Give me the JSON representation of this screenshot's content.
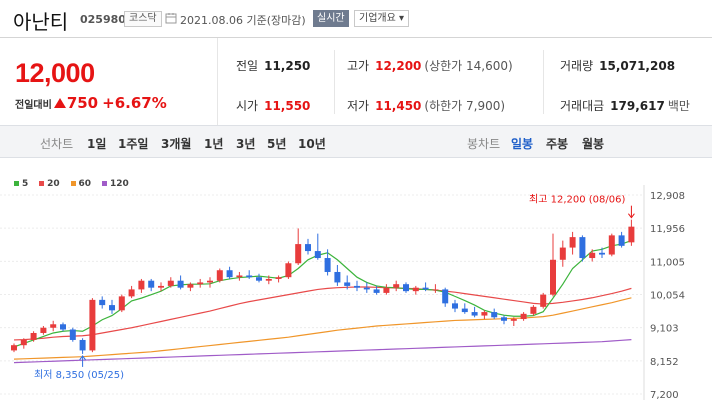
{
  "header": {
    "stock_name": "아난티",
    "stock_code": "025980",
    "market": "코스닥",
    "date_text": "2021.08.06 기준(장마감)",
    "realtime_label": "실시간",
    "overview_label": "기업개요 ▾"
  },
  "price": {
    "current": "12,000",
    "diff_label": "전일대비",
    "diff_value": "750",
    "diff_rate": "+6.67%"
  },
  "stats": {
    "prev_close": {
      "label": "전일",
      "value": "11,250"
    },
    "open": {
      "label": "시가",
      "value": "11,550"
    },
    "high": {
      "label": "고가",
      "value": "12,200",
      "note": "(상한가 14,600)"
    },
    "low": {
      "label": "저가",
      "value": "11,450",
      "note": "(하한가 7,900)"
    },
    "volume": {
      "label": "거래량",
      "value": "15,071,208"
    },
    "turnover": {
      "label": "거래대금",
      "value": "179,617",
      "unit": "백만"
    }
  },
  "periods": {
    "line_label": "선차트",
    "line_options": [
      "1일",
      "1주일",
      "3개월",
      "1년",
      "3년",
      "5년",
      "10년"
    ],
    "candle_label": "봉차트",
    "candle_options": [
      "일봉",
      "주봉",
      "월봉"
    ],
    "selected": "일봉"
  },
  "colors": {
    "up": "#e83c3c",
    "down": "#2f6fe0",
    "ma5": "#3cb43c",
    "ma20": "#e84a4a",
    "ma60": "#f0962a",
    "ma120": "#a05cc8",
    "accent": "#e61414"
  },
  "chart_data": {
    "type": "candlestick",
    "legend": [
      "5",
      "20",
      "60",
      "120"
    ],
    "y_ticks": [
      "12,908",
      "11,956",
      "11,005",
      "10,054",
      "9,103",
      "8,152",
      "7,200"
    ],
    "ylim": [
      7200,
      12908
    ],
    "annotations": {
      "high": "최고 12,200 (08/06)",
      "low": "최저 8,350 (05/25)"
    },
    "candles": [
      [
        8450,
        8650,
        8400,
        8600
      ],
      [
        8600,
        8800,
        8500,
        8750
      ],
      [
        8750,
        9000,
        8700,
        8950
      ],
      [
        8950,
        9150,
        8900,
        9100
      ],
      [
        9100,
        9300,
        9000,
        9200
      ],
      [
        9200,
        9250,
        9000,
        9050
      ],
      [
        9050,
        9100,
        8700,
        8750
      ],
      [
        8750,
        8800,
        8350,
        8450
      ],
      [
        8450,
        9950,
        8400,
        9900
      ],
      [
        9900,
        10000,
        9650,
        9750
      ],
      [
        9750,
        9900,
        9500,
        9600
      ],
      [
        9600,
        10050,
        9550,
        10000
      ],
      [
        10000,
        10300,
        9950,
        10200
      ],
      [
        10200,
        10500,
        10100,
        10450
      ],
      [
        10450,
        10500,
        10150,
        10250
      ],
      [
        10250,
        10400,
        10150,
        10300
      ],
      [
        10300,
        10550,
        10250,
        10450
      ],
      [
        10450,
        10600,
        10200,
        10250
      ],
      [
        10250,
        10400,
        10150,
        10350
      ],
      [
        10350,
        10500,
        10250,
        10400
      ],
      [
        10400,
        10550,
        10250,
        10450
      ],
      [
        10450,
        10800,
        10400,
        10750
      ],
      [
        10750,
        10850,
        10500,
        10550
      ],
      [
        10550,
        10700,
        10450,
        10600
      ],
      [
        10600,
        10750,
        10500,
        10550
      ],
      [
        10550,
        10650,
        10400,
        10450
      ],
      [
        10450,
        10600,
        10350,
        10500
      ],
      [
        10500,
        10600,
        10400,
        10550
      ],
      [
        10550,
        11000,
        10500,
        10950
      ],
      [
        10950,
        11950,
        10900,
        11500
      ],
      [
        11500,
        11650,
        11200,
        11300
      ],
      [
        11300,
        11800,
        11050,
        11100
      ],
      [
        11100,
        11350,
        10600,
        10700
      ],
      [
        10700,
        10900,
        10300,
        10400
      ],
      [
        10400,
        10600,
        10200,
        10300
      ],
      [
        10300,
        10450,
        10150,
        10250
      ],
      [
        10250,
        10400,
        10100,
        10200
      ],
      [
        10200,
        10300,
        10050,
        10100
      ],
      [
        10100,
        10350,
        10050,
        10250
      ],
      [
        10250,
        10450,
        10150,
        10350
      ],
      [
        10350,
        10400,
        10100,
        10150
      ],
      [
        10150,
        10300,
        10050,
        10250
      ],
      [
        10250,
        10400,
        10150,
        10200
      ],
      [
        10200,
        10350,
        10100,
        10200
      ],
      [
        10200,
        10250,
        9700,
        9800
      ],
      [
        9800,
        9900,
        9550,
        9650
      ],
      [
        9650,
        9800,
        9500,
        9550
      ],
      [
        9550,
        9700,
        9400,
        9450
      ],
      [
        9450,
        9600,
        9350,
        9550
      ],
      [
        9550,
        9650,
        9350,
        9400
      ],
      [
        9400,
        9450,
        9200,
        9300
      ],
      [
        9300,
        9400,
        9150,
        9350
      ],
      [
        9350,
        9550,
        9300,
        9500
      ],
      [
        9500,
        9750,
        9450,
        9700
      ],
      [
        9700,
        10100,
        9650,
        10050
      ],
      [
        10050,
        11800,
        10000,
        11050
      ],
      [
        11050,
        11600,
        10850,
        11400
      ],
      [
        11400,
        11850,
        11200,
        11700
      ],
      [
        11700,
        11750,
        11000,
        11100
      ],
      [
        11100,
        11350,
        11000,
        11250
      ],
      [
        11250,
        11400,
        11100,
        11200
      ],
      [
        11200,
        11800,
        11150,
        11750
      ],
      [
        11750,
        11850,
        11400,
        11450
      ],
      [
        11550,
        12200,
        11450,
        12000
      ]
    ],
    "ma5": [
      8550,
      8650,
      8750,
      8850,
      8950,
      9000,
      9020,
      9000,
      9150,
      9330,
      9450,
      9650,
      9870,
      9950,
      10050,
      10150,
      10300,
      10330,
      10350,
      10350,
      10360,
      10450,
      10500,
      10540,
      10560,
      10580,
      10550,
      10520,
      10600,
      10800,
      11050,
      11180,
      11250,
      11050,
      10800,
      10550,
      10400,
      10300,
      10260,
      10250,
      10220,
      10200,
      10200,
      10180,
      10120,
      10000,
      9880,
      9750,
      9600,
      9520,
      9460,
      9430,
      9430,
      9450,
      9560,
      9950,
      10350,
      10800,
      11050,
      11300,
      11350,
      11450,
      11500,
      11600
    ],
    "ma20": [
      8750,
      8760,
      8780,
      8800,
      8830,
      8850,
      8860,
      8870,
      8900,
      8950,
      9000,
      9050,
      9100,
      9160,
      9220,
      9280,
      9340,
      9400,
      9460,
      9520,
      9580,
      9650,
      9720,
      9790,
      9850,
      9900,
      9950,
      10000,
      10050,
      10100,
      10150,
      10200,
      10230,
      10250,
      10260,
      10270,
      10270,
      10260,
      10250,
      10240,
      10230,
      10220,
      10200,
      10180,
      10150,
      10120,
      10080,
      10040,
      10000,
      9960,
      9920,
      9880,
      9840,
      9800,
      9780,
      9800,
      9830,
      9870,
      9910,
      9960,
      10020,
      10080,
      10150,
      10230
    ],
    "ma60": [
      8200,
      8210,
      8220,
      8230,
      8240,
      8250,
      8260,
      8270,
      8290,
      8310,
      8330,
      8350,
      8370,
      8390,
      8410,
      8440,
      8470,
      8500,
      8530,
      8560,
      8590,
      8620,
      8650,
      8680,
      8710,
      8740,
      8770,
      8800,
      8830,
      8870,
      8910,
      8950,
      8990,
      9030,
      9060,
      9090,
      9120,
      9150,
      9170,
      9190,
      9210,
      9230,
      9250,
      9270,
      9290,
      9310,
      9320,
      9330,
      9340,
      9350,
      9360,
      9370,
      9380,
      9400,
      9420,
      9460,
      9520,
      9580,
      9640,
      9700,
      9760,
      9820,
      9890,
      9960
    ],
    "ma120": [
      8100,
      8110,
      8120,
      8130,
      8140,
      8150,
      8160,
      8170,
      8180,
      8190,
      8200,
      8210,
      8220,
      8230,
      8240,
      8250,
      8260,
      8270,
      8280,
      8290,
      8300,
      8310,
      8320,
      8330,
      8340,
      8350,
      8360,
      8370,
      8380,
      8390,
      8400,
      8410,
      8420,
      8430,
      8440,
      8450,
      8460,
      8470,
      8480,
      8490,
      8500,
      8510,
      8520,
      8530,
      8540,
      8550,
      8560,
      8570,
      8580,
      8590,
      8600,
      8610,
      8620,
      8630,
      8640,
      8650,
      8660,
      8670,
      8680,
      8690,
      8700,
      8720,
      8740,
      8760
    ]
  }
}
